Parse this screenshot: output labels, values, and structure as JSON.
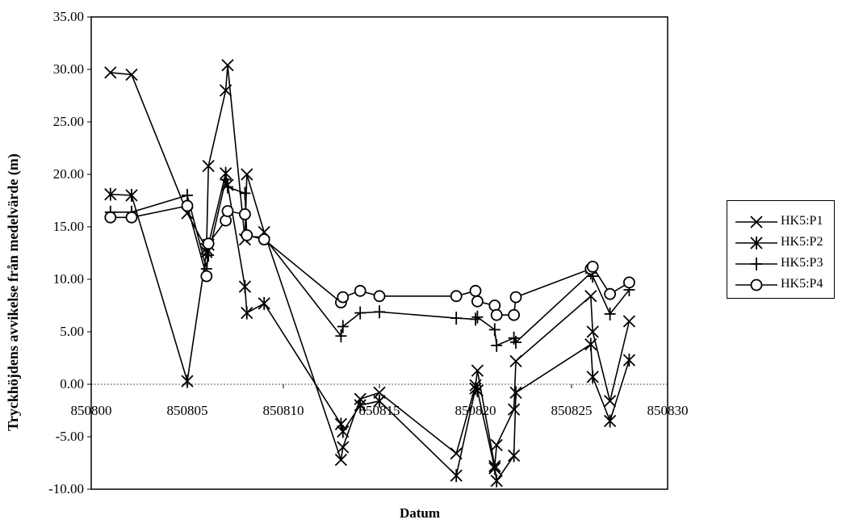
{
  "chart_data": {
    "type": "line",
    "title": "",
    "xlabel": "Datum",
    "ylabel": "Tryckhöjdens avvikelse från medelvärde (m)",
    "xlim": [
      850800,
      850830
    ],
    "ylim": [
      -10,
      35
    ],
    "x_ticks": [
      "850800",
      "850805",
      "850810",
      "850815",
      "850820",
      "850825",
      "850830"
    ],
    "y_ticks": [
      "-10.00",
      "-5.00",
      "0.00",
      "5.00",
      "10.00",
      "15.00",
      "20.00",
      "25.00",
      "30.00",
      "35.00"
    ],
    "legend_position": "right",
    "series": [
      {
        "name": "HK5:P1",
        "marker": "x",
        "x": [
          850801,
          850802.1,
          850805,
          850806,
          850806.1,
          850807,
          850807.1,
          850808,
          850808.1,
          850809,
          850813,
          850813.1,
          850814,
          850815,
          850819,
          850820,
          850820.1,
          850821,
          850821.1,
          850822,
          850822.1,
          850826,
          850826.1,
          850827,
          850828
        ],
        "y": [
          29.7,
          29.5,
          16.3,
          12.9,
          20.8,
          28.0,
          30.4,
          13.8,
          20.0,
          14.5,
          -7.2,
          -6.0,
          -1.4,
          -0.8,
          -6.6,
          -0.1,
          1.3,
          -7.8,
          -5.8,
          -2.4,
          2.2,
          8.4,
          5.0,
          -1.6,
          6.0
        ]
      },
      {
        "name": "HK5:P2",
        "marker": "star",
        "x": [
          850801,
          850802.1,
          850805,
          850806,
          850806.1,
          850807,
          850807.1,
          850808,
          850808.1,
          850809,
          850813,
          850813.1,
          850814,
          850815,
          850819,
          850820,
          850820.1,
          850821,
          850821.1,
          850822,
          850822.1,
          850826,
          850826.1,
          850827,
          850828
        ],
        "y": [
          18.1,
          18.0,
          0.3,
          12.6,
          13.3,
          20.1,
          19.0,
          9.3,
          6.8,
          7.7,
          -3.8,
          -4.5,
          -2.0,
          -1.6,
          -8.7,
          -0.4,
          -0.6,
          -8.0,
          -9.2,
          -6.8,
          -0.8,
          3.8,
          0.7,
          -3.5,
          2.3
        ]
      },
      {
        "name": "HK5:P3",
        "marker": "plus",
        "x": [
          850801,
          850802.1,
          850805,
          850806,
          850806.1,
          850807,
          850807.1,
          850808,
          850808.1,
          850809,
          850813,
          850813.1,
          850814,
          850815,
          850819,
          850820,
          850820.1,
          850821,
          850821.1,
          850822,
          850822.1,
          850826,
          850826.1,
          850827,
          850828
        ],
        "y": [
          16.4,
          16.4,
          18.0,
          11.0,
          12.3,
          19.5,
          18.8,
          18.2,
          14.1,
          14.0,
          4.6,
          5.5,
          6.8,
          6.9,
          6.3,
          6.2,
          6.4,
          5.2,
          3.7,
          4.4,
          4.0,
          10.6,
          10.3,
          6.7,
          9.0
        ]
      },
      {
        "name": "HK5:P4",
        "marker": "circle",
        "x": [
          850801,
          850802.1,
          850805,
          850806,
          850806.1,
          850807,
          850807.1,
          850808,
          850808.1,
          850809,
          850813,
          850813.1,
          850814,
          850815,
          850819,
          850820,
          850820.1,
          850821,
          850821.1,
          850822,
          850822.1,
          850826,
          850826.1,
          850827,
          850828
        ],
        "y": [
          15.9,
          15.9,
          17.0,
          10.3,
          13.4,
          15.6,
          16.5,
          16.2,
          14.2,
          13.8,
          7.8,
          8.3,
          8.9,
          8.4,
          8.4,
          8.9,
          7.9,
          7.5,
          6.6,
          6.6,
          8.3,
          11.0,
          11.2,
          8.6,
          9.7
        ]
      }
    ]
  }
}
